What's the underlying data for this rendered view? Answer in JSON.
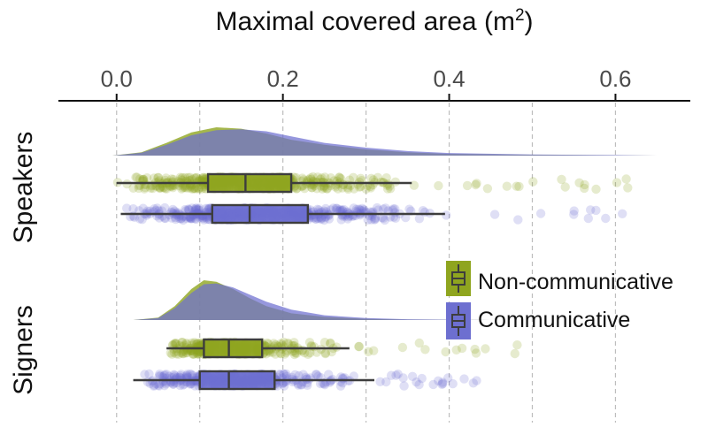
{
  "chart_data": {
    "type": "raincloud",
    "title": "Maximal covered area",
    "title_unit_base": "(m",
    "title_unit_exp": "2",
    "title_unit_close": ")",
    "xlim": [
      -0.07,
      0.69
    ],
    "xticks": [
      "0.0",
      "0.2",
      "0.4",
      "0.6"
    ],
    "xtick_values": [
      0.0,
      0.2,
      0.4,
      0.6
    ],
    "minor_grid": [
      0.1,
      0.3,
      0.5
    ],
    "groups": [
      "Speakers",
      "Signers"
    ],
    "legend": {
      "position": "right-center",
      "entries": [
        "Non-communicative",
        "Communicative"
      ]
    },
    "colors": {
      "non_communicative": "#8fa51f",
      "communicative": "#6d6fd0",
      "box_stroke": "#3d3d3d",
      "grid": "#bdbdbd",
      "axis": "#111111"
    },
    "series": [
      {
        "group": "Speakers",
        "name": "Non-communicative",
        "box": {
          "whisker_low": 0.0,
          "q1": 0.11,
          "median": 0.155,
          "q3": 0.21,
          "whisker_high": 0.355
        },
        "range": [
          0.0,
          0.62
        ],
        "density_x": [
          -0.005,
          0.03,
          0.06,
          0.09,
          0.12,
          0.15,
          0.18,
          0.21,
          0.25,
          0.3,
          0.35,
          0.4,
          0.5,
          0.6,
          0.65
        ],
        "density_y": [
          0.0,
          0.12,
          0.45,
          0.82,
          1.0,
          0.95,
          0.78,
          0.56,
          0.38,
          0.22,
          0.12,
          0.06,
          0.03,
          0.01,
          0.0
        ]
      },
      {
        "group": "Speakers",
        "name": "Communicative",
        "box": {
          "whisker_low": 0.005,
          "q1": 0.115,
          "median": 0.16,
          "q3": 0.23,
          "whisker_high": 0.395
        },
        "range": [
          0.005,
          0.655
        ],
        "density_x": [
          -0.005,
          0.03,
          0.06,
          0.09,
          0.12,
          0.15,
          0.18,
          0.21,
          0.25,
          0.3,
          0.35,
          0.4,
          0.5,
          0.6,
          0.65
        ],
        "density_y": [
          0.0,
          0.1,
          0.38,
          0.72,
          0.9,
          0.93,
          0.86,
          0.68,
          0.45,
          0.28,
          0.16,
          0.09,
          0.04,
          0.02,
          0.0
        ]
      },
      {
        "group": "Signers",
        "name": "Non-communicative",
        "box": {
          "whisker_low": 0.06,
          "q1": 0.105,
          "median": 0.135,
          "q3": 0.175,
          "whisker_high": 0.28
        },
        "range": [
          0.06,
          0.5
        ],
        "density_x": [
          0.02,
          0.05,
          0.07,
          0.09,
          0.105,
          0.12,
          0.14,
          0.16,
          0.18,
          0.21,
          0.25,
          0.3,
          0.35,
          0.4,
          0.45
        ],
        "density_y": [
          0.0,
          0.06,
          0.35,
          0.78,
          1.0,
          0.96,
          0.78,
          0.55,
          0.35,
          0.17,
          0.08,
          0.03,
          0.01,
          0.005,
          0.0
        ]
      },
      {
        "group": "Signers",
        "name": "Communicative",
        "box": {
          "whisker_low": 0.02,
          "q1": 0.1,
          "median": 0.135,
          "q3": 0.19,
          "whisker_high": 0.31
        },
        "range": [
          0.02,
          0.44
        ],
        "density_x": [
          0.02,
          0.05,
          0.07,
          0.09,
          0.105,
          0.12,
          0.14,
          0.16,
          0.18,
          0.21,
          0.25,
          0.3,
          0.35,
          0.4,
          0.45
        ],
        "density_y": [
          0.0,
          0.05,
          0.3,
          0.68,
          0.9,
          0.92,
          0.82,
          0.64,
          0.46,
          0.26,
          0.12,
          0.05,
          0.02,
          0.008,
          0.0
        ]
      }
    ]
  }
}
